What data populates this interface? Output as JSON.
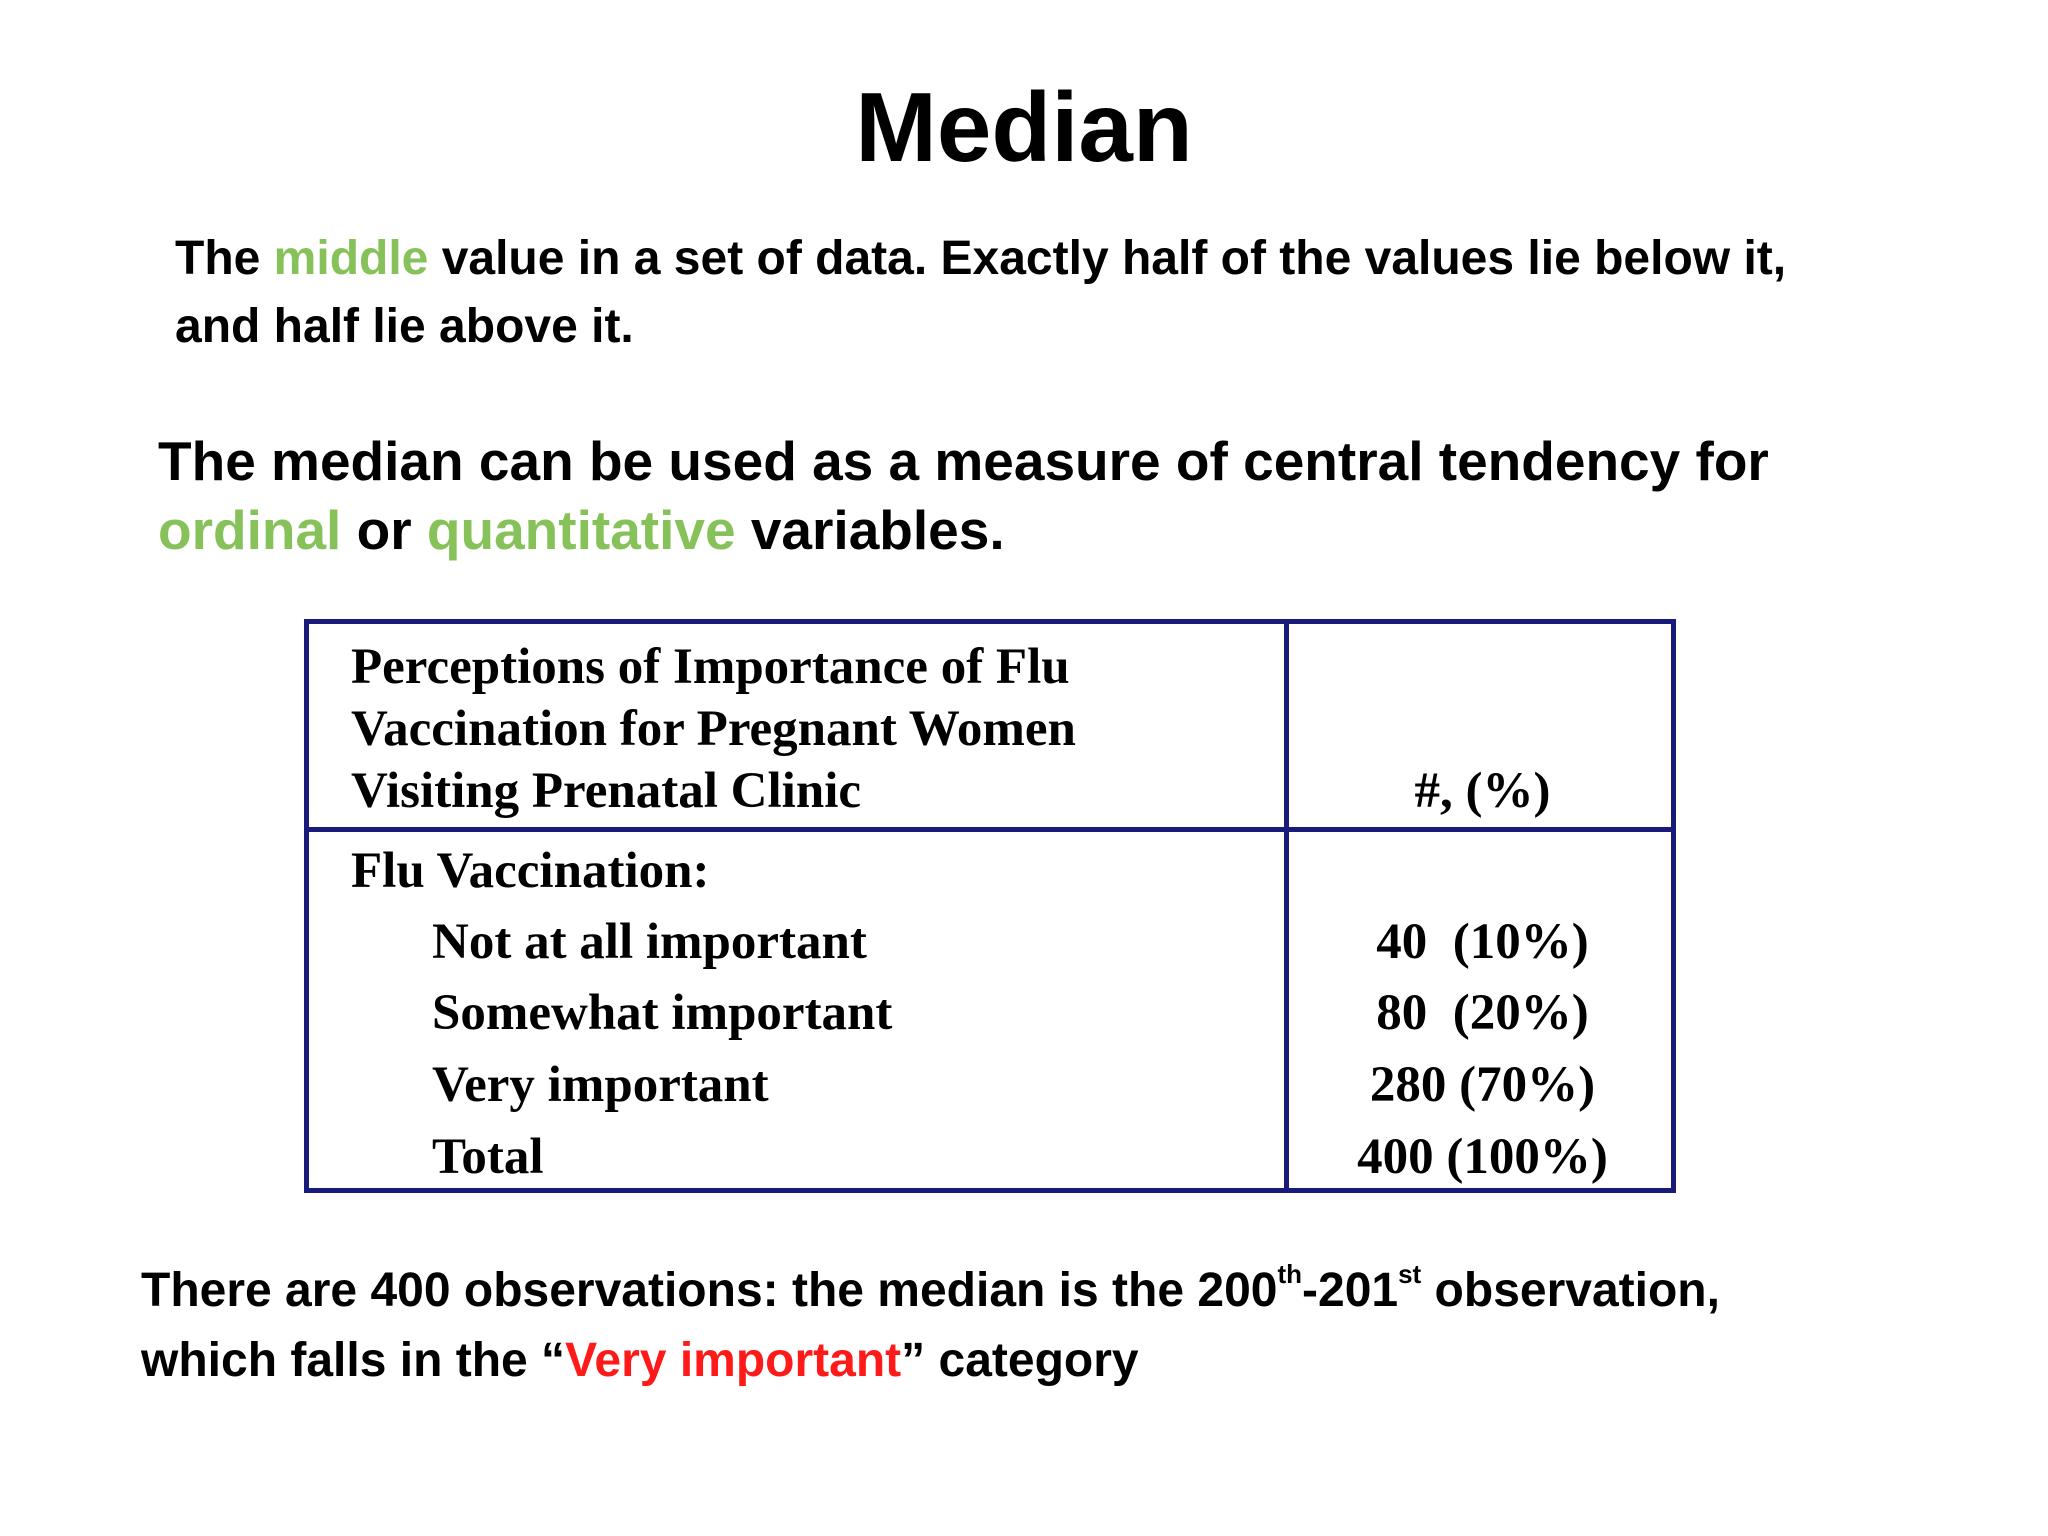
{
  "title": "Median",
  "definition": {
    "pre": "The ",
    "highlight": "middle",
    "post_line1": " value in a set of data.  Exactly half of the values lie below it,",
    "line2": "and half lie above it."
  },
  "usage": {
    "line1": "The median can be used as a measure of central tendency for",
    "ordinal": "ordinal",
    "or": " or ",
    "quantitative": "quantitative",
    "end": " variables."
  },
  "table": {
    "caption_lines": [
      "Perceptions of Importance of Flu",
      "Vaccination for Pregnant Women",
      "Visiting Prenatal Clinic"
    ],
    "count_header": "#, (%)",
    "group_label": "Flu Vaccination:",
    "rows": [
      {
        "label": "Not at all important",
        "value": "40  (10%)"
      },
      {
        "label": "Somewhat important",
        "value": "80  (20%)"
      },
      {
        "label": "Very important",
        "value": "280 (70%)"
      },
      {
        "label": "Total",
        "value": "400 (100%)"
      }
    ]
  },
  "conclusion": {
    "part1": "There are 400 observations: the median is the 200",
    "sup1": "th",
    "part2": "-201",
    "sup2": "st",
    "part3": " observation,",
    "line2_pre": "which falls in the “",
    "highlight": "Very important",
    "line2_post": "” category"
  },
  "colors": {
    "highlight_green": "#86c15a",
    "highlight_red": "#ff1a1a",
    "table_border": "#1a1a7a"
  }
}
